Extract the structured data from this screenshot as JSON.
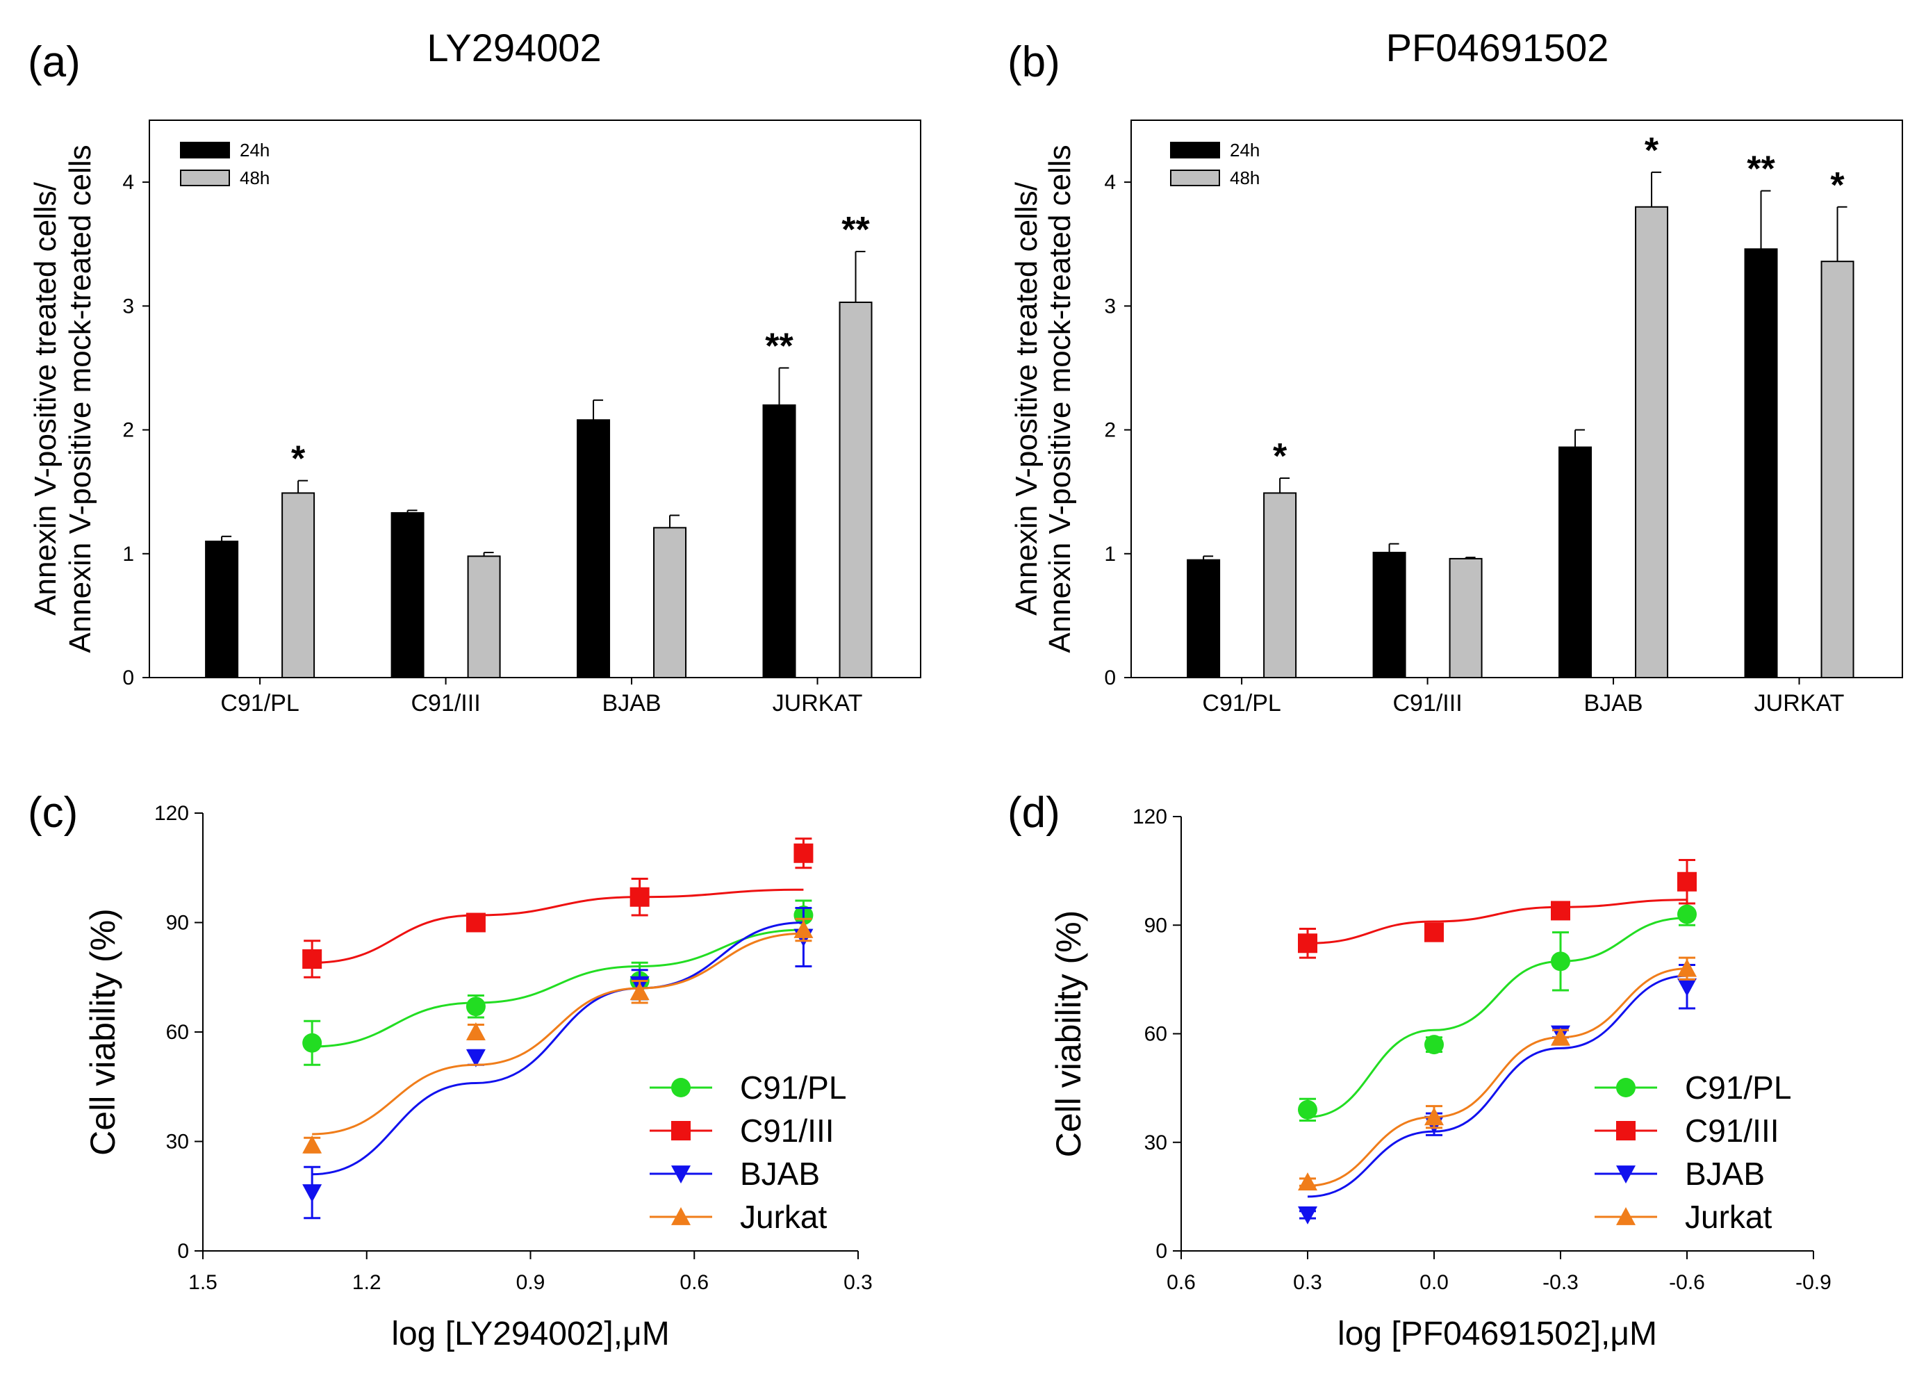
{
  "chart_data": [
    {
      "panel": "(a)",
      "type": "bar",
      "title": "LY294002",
      "ylabel_line1": "Annexin V-positive treated cells/",
      "ylabel_line2": "Annexin V-positive mock-treated cells",
      "xlabel": "",
      "ylim": [
        0,
        4.5
      ],
      "yticks": [
        "0",
        "1",
        "2",
        "3",
        "4"
      ],
      "categories": [
        "C91/PL",
        "C91/III",
        "BJAB",
        "JURKAT"
      ],
      "series": [
        {
          "name": "24h",
          "color": "#000000",
          "values": [
            1.1,
            1.33,
            2.08,
            2.2
          ],
          "errors": [
            0.04,
            0.02,
            0.16,
            0.3
          ],
          "significance": [
            "",
            "",
            "",
            "**"
          ]
        },
        {
          "name": "48h",
          "color": "#c0c0c0",
          "values": [
            1.49,
            0.98,
            1.21,
            3.03
          ],
          "errors": [
            0.1,
            0.03,
            0.1,
            0.41
          ],
          "significance": [
            "*",
            "",
            "",
            "**"
          ]
        }
      ]
    },
    {
      "panel": "(b)",
      "type": "bar",
      "title": "PF04691502",
      "ylabel_line1": "Annexin V-positive treated cells/",
      "ylabel_line2": "Annexin V-positive mock-treated cells",
      "xlabel": "",
      "ylim": [
        0,
        4.5
      ],
      "yticks": [
        "0",
        "1",
        "2",
        "3",
        "4"
      ],
      "categories": [
        "C91/PL",
        "C91/III",
        "BJAB",
        "JURKAT"
      ],
      "series": [
        {
          "name": "24h",
          "color": "#000000",
          "values": [
            0.95,
            1.01,
            1.86,
            3.46
          ],
          "errors": [
            0.03,
            0.07,
            0.14,
            0.47
          ],
          "significance": [
            "",
            "",
            "",
            "**"
          ]
        },
        {
          "name": "48h",
          "color": "#c0c0c0",
          "values": [
            1.49,
            0.96,
            3.8,
            3.36
          ],
          "errors": [
            0.12,
            0.01,
            0.28,
            0.44
          ],
          "significance": [
            "*",
            "",
            "*",
            "*"
          ]
        }
      ]
    },
    {
      "panel": "(c)",
      "type": "scatter",
      "title": "",
      "xlabel": "log [LY294002],μM",
      "ylabel": "Cell viability (%)",
      "xlim": [
        1.5,
        0.3
      ],
      "ylim": [
        0,
        120
      ],
      "xticks": [
        "1.5",
        "1.2",
        "0.9",
        "0.6",
        "0.3"
      ],
      "yticks": [
        "0",
        "30",
        "60",
        "90",
        "120"
      ],
      "x": [
        1.3,
        1.0,
        0.7,
        0.4
      ],
      "series": [
        {
          "name": "C91/PL",
          "color": "#22dd22",
          "marker": "circle",
          "values": [
            57,
            67,
            74,
            92
          ],
          "errors": [
            6,
            3,
            5,
            4
          ],
          "fit": [
            56,
            68,
            78,
            88
          ]
        },
        {
          "name": "C91/III",
          "color": "#ee1111",
          "marker": "square",
          "values": [
            80,
            90,
            97,
            109
          ],
          "errors": [
            5,
            2,
            5,
            4
          ],
          "fit": [
            79,
            92,
            97,
            99
          ]
        },
        {
          "name": "BJAB",
          "color": "#1111ee",
          "marker": "triangle-down",
          "values": [
            16,
            53,
            73,
            86
          ],
          "errors": [
            7,
            2,
            4,
            8
          ],
          "fit": [
            21,
            46,
            72,
            90
          ]
        },
        {
          "name": "Jurkat",
          "color": "#f07d1a",
          "marker": "triangle-up",
          "values": [
            29,
            60,
            71,
            88
          ],
          "errors": [
            2,
            2,
            3,
            3
          ],
          "fit": [
            32,
            51,
            72,
            87
          ]
        }
      ]
    },
    {
      "panel": "(d)",
      "type": "scatter",
      "title": "",
      "xlabel": "log [PF04691502],μM",
      "ylabel": "Cell viability (%)",
      "xlim": [
        0.6,
        -0.9
      ],
      "ylim": [
        0,
        120
      ],
      "xticks": [
        "0.6",
        "0.3",
        "0.0",
        "-0.3",
        "-0.6",
        "-0.9"
      ],
      "yticks": [
        "0",
        "30",
        "60",
        "90",
        "120"
      ],
      "x": [
        0.3,
        0.0,
        -0.3,
        -0.6
      ],
      "series": [
        {
          "name": "C91/PL",
          "color": "#22dd22",
          "marker": "circle",
          "values": [
            39,
            57,
            80,
            93
          ],
          "errors": [
            3,
            2,
            8,
            3
          ],
          "fit": [
            37,
            61,
            80,
            92
          ]
        },
        {
          "name": "C91/III",
          "color": "#ee1111",
          "marker": "square",
          "values": [
            85,
            88,
            94,
            102
          ],
          "errors": [
            4,
            1,
            2,
            6
          ],
          "fit": [
            85,
            91,
            95,
            97
          ]
        },
        {
          "name": "BJAB",
          "color": "#1111ee",
          "marker": "triangle-down",
          "values": [
            10,
            35,
            60,
            73
          ],
          "errors": [
            1,
            3,
            1,
            6
          ],
          "fit": [
            15,
            33,
            56,
            76
          ]
        },
        {
          "name": "Jurkat",
          "color": "#f07d1a",
          "marker": "triangle-up",
          "values": [
            19,
            37,
            59,
            78
          ],
          "errors": [
            1,
            3,
            2,
            3
          ],
          "fit": [
            18,
            37,
            59,
            78
          ]
        }
      ]
    }
  ]
}
